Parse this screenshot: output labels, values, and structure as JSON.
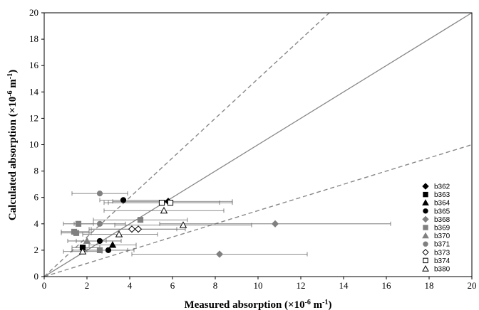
{
  "chart_data": {
    "type": "scatter",
    "xlabel": "Measured absorption (×10",
    "xlabel_exp": "-6",
    "xlabel_unit": " m",
    "xlabel_unit_exp": "-1",
    "xlabel_close": ")",
    "ylabel": "Calculated absorption (×10",
    "ylabel_exp": "-6",
    "ylabel_unit": " m",
    "ylabel_unit_exp": "-1",
    "ylabel_close": ")",
    "xlim": [
      0,
      20
    ],
    "ylim": [
      0,
      20
    ],
    "xticks": [
      "0",
      "2",
      "4",
      "6",
      "8",
      "10",
      "12",
      "14",
      "16",
      "18",
      "20"
    ],
    "yticks": [
      "0",
      "2",
      "4",
      "6",
      "8",
      "10",
      "12",
      "14",
      "16",
      "18",
      "20"
    ],
    "grid": false,
    "legend_position": "right",
    "reference_lines": [
      {
        "style": "solid",
        "slope": 1.0,
        "color": "#888888"
      },
      {
        "style": "dashed",
        "slope": 1.5,
        "color": "#888888"
      },
      {
        "style": "dashed",
        "slope": 0.5,
        "color": "#888888"
      }
    ],
    "series": [
      {
        "name": "b362",
        "marker": "diamond",
        "fill": "#000000",
        "stroke": "#000000",
        "points": [
          {
            "x": 5.8,
            "y": 5.7,
            "xerr": [
              3.2,
              8.8
            ]
          }
        ]
      },
      {
        "name": "b363",
        "marker": "square",
        "fill": "#000000",
        "stroke": "#000000",
        "points": [
          {
            "x": 1.8,
            "y": 2.2,
            "xerr": [
              1.3,
              2.6
            ]
          }
        ]
      },
      {
        "name": "b364",
        "marker": "triangle",
        "fill": "#000000",
        "stroke": "#000000",
        "points": [
          {
            "x": 3.2,
            "y": 2.4,
            "xerr": [
              2.1,
              4.3
            ]
          }
        ]
      },
      {
        "name": "b365",
        "marker": "circle",
        "fill": "#000000",
        "stroke": "#000000",
        "points": [
          {
            "x": 3.7,
            "y": 5.8,
            "xerr": [
              2.6,
              5.8
            ]
          },
          {
            "x": 2.6,
            "y": 2.7,
            "xerr": [
              1.5,
              3.6
            ]
          },
          {
            "x": 3.0,
            "y": 2.0,
            "xerr": [
              2.0,
              4.2
            ]
          }
        ]
      },
      {
        "name": "b368",
        "marker": "diamond",
        "fill": "#808080",
        "stroke": "#808080",
        "points": [
          {
            "x": 10.8,
            "y": 4.0,
            "xerr": [
              5.4,
              16.2
            ]
          },
          {
            "x": 8.2,
            "y": 1.7,
            "xerr": [
              4.1,
              12.3
            ]
          }
        ]
      },
      {
        "name": "b369",
        "marker": "square",
        "fill": "#808080",
        "stroke": "#808080",
        "points": [
          {
            "x": 1.6,
            "y": 4.0,
            "xerr": [
              0.9,
              2.3
            ]
          },
          {
            "x": 4.5,
            "y": 4.3,
            "xerr": [
              2.3,
              6.7
            ]
          },
          {
            "x": 1.4,
            "y": 3.4,
            "xerr": [
              0.8,
              2.1
            ]
          },
          {
            "x": 1.5,
            "y": 3.3,
            "xerr": [
              0.8,
              2.2
            ]
          },
          {
            "x": 2.6,
            "y": 2.0,
            "xerr": [
              1.3,
              3.9
            ]
          }
        ]
      },
      {
        "name": "b370",
        "marker": "triangle",
        "fill": "#808080",
        "stroke": "#808080",
        "points": [
          {
            "x": 2.0,
            "y": 2.7,
            "xerr": [
              1.1,
              2.9
            ]
          }
        ]
      },
      {
        "name": "b371",
        "marker": "circle",
        "fill": "#808080",
        "stroke": "#808080",
        "points": [
          {
            "x": 2.6,
            "y": 6.3,
            "xerr": [
              1.3,
              3.9
            ]
          },
          {
            "x": 2.6,
            "y": 4.0,
            "xerr": [
              1.4,
              3.8
            ]
          }
        ]
      },
      {
        "name": "b373",
        "marker": "diamond-open",
        "fill": "#ffffff",
        "stroke": "#000000",
        "points": [
          {
            "x": 4.1,
            "y": 3.6,
            "xerr": [
              2.1,
              6.2
            ]
          },
          {
            "x": 4.4,
            "y": 3.6,
            "xerr": [
              2.2,
              6.6
            ]
          }
        ]
      },
      {
        "name": "b374",
        "marker": "square-open",
        "fill": "#ffffff",
        "stroke": "#000000",
        "points": [
          {
            "x": 5.9,
            "y": 5.6,
            "xerr": [
              3.0,
              8.8
            ]
          },
          {
            "x": 5.5,
            "y": 5.6,
            "xerr": [
              2.8,
              8.2
            ]
          }
        ]
      },
      {
        "name": "b380",
        "marker": "triangle-open",
        "fill": "#ffffff",
        "stroke": "#000000",
        "points": [
          {
            "x": 5.6,
            "y": 5.0,
            "xerr": [
              2.8,
              8.4
            ]
          },
          {
            "x": 6.5,
            "y": 3.9,
            "xerr": [
              3.3,
              9.7
            ]
          },
          {
            "x": 3.5,
            "y": 3.2,
            "xerr": [
              1.8,
              5.3
            ]
          },
          {
            "x": 1.8,
            "y": 1.9,
            "xerr": [
              0.9,
              2.7
            ]
          }
        ]
      }
    ]
  }
}
